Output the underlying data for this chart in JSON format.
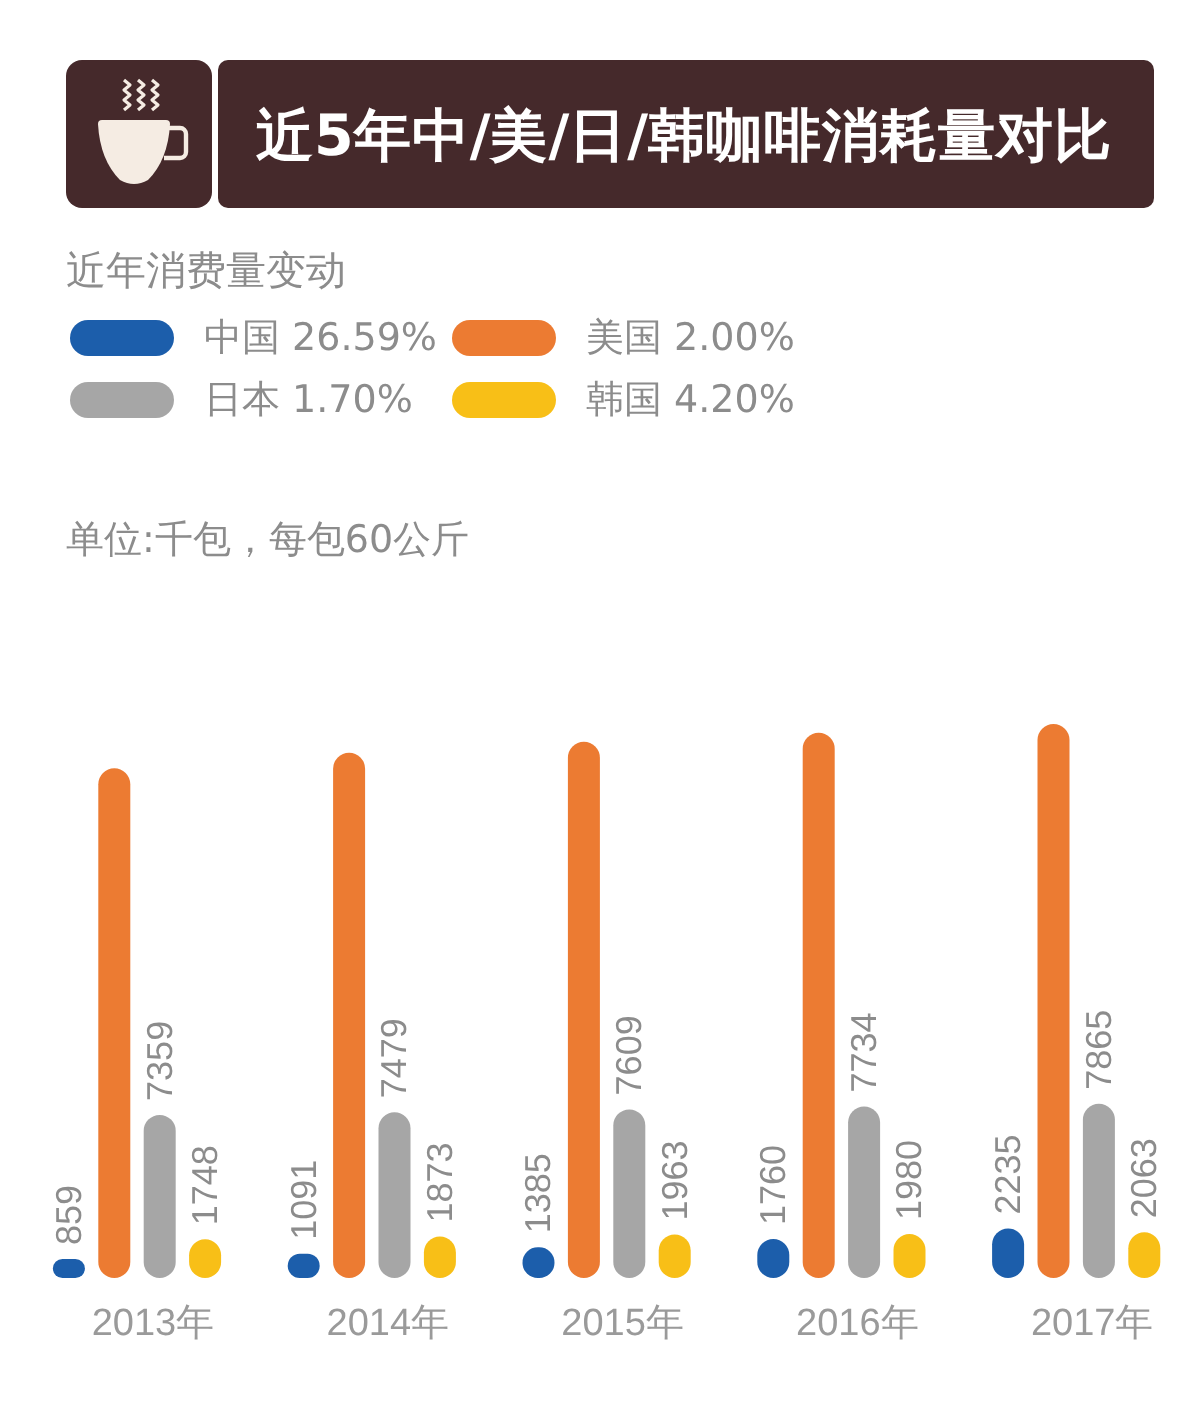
{
  "chart_data": {
    "type": "bar",
    "title": "近5年中/美/日/韩咖啡消耗量对比",
    "subtitle": "近年消费量变动",
    "annotations": [
      "单位:千包，每包60公斤"
    ],
    "categories": [
      "2013年",
      "2014年",
      "2015年",
      "2016年",
      "2017年"
    ],
    "series": [
      {
        "name": "中国 26.59%",
        "color": "#1c5eab",
        "values": [
          859,
          1091,
          1385,
          1760,
          2235
        ],
        "value_labels": [
          "859",
          "1091",
          "1385",
          "1760",
          "2235"
        ]
      },
      {
        "name": "美国 2.00%",
        "color": "#ec7b32",
        "values": [
          23000,
          23700,
          24200,
          24600,
          25000
        ]
      },
      {
        "name": "日本 1.70%",
        "color": "#a6a6a6",
        "values": [
          7359,
          7479,
          7609,
          7734,
          7865
        ],
        "value_labels": [
          "7359",
          "7479",
          "7609",
          "7734",
          "7865"
        ]
      },
      {
        "name": "韩国 4.20%",
        "color": "#f8bf17",
        "values": [
          1748,
          1873,
          1963,
          1980,
          2063
        ],
        "value_labels": [
          "1748",
          "1873",
          "1963",
          "1980",
          "2063"
        ]
      }
    ],
    "legend": "top left"
  }
}
